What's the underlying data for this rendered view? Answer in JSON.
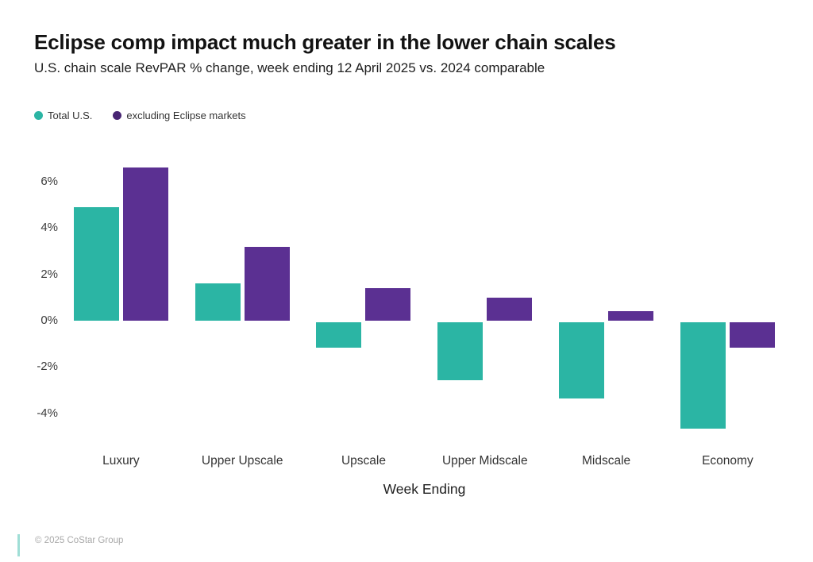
{
  "title": "Eclipse comp impact much greater in the lower chain scales",
  "subtitle": "U.S. chain scale RevPAR % change, week ending 12 April 2025 vs. 2024 comparable",
  "footer": "© 2025 CoStar Group",
  "colors": {
    "teal": "#2BB5A4",
    "purple": "#5B3092",
    "legend_purple": "#482573"
  },
  "legend": [
    {
      "label": "Total U.S.",
      "color_key": "teal"
    },
    {
      "label": "excluding Eclipse markets",
      "color_key": "legend_purple"
    }
  ],
  "chart_data": {
    "type": "bar",
    "title": "Eclipse comp impact much greater in the lower chain scales",
    "subtitle": "U.S. chain scale RevPAR % change, week ending 12 April 2025 vs. 2024 comparable",
    "categories": [
      "Luxury",
      "Upper Upscale",
      "Upscale",
      "Upper Midscale",
      "Midscale",
      "Economy"
    ],
    "series": [
      {
        "name": "Total U.S.",
        "color_key": "teal",
        "values": [
          4.9,
          1.6,
          -1.1,
          -2.5,
          -3.3,
          -4.6
        ]
      },
      {
        "name": "excluding Eclipse markets",
        "color_key": "purple",
        "values": [
          6.6,
          3.2,
          1.4,
          1.0,
          0.4,
          -1.1
        ]
      }
    ],
    "xlabel": "Week Ending",
    "ylabel": "",
    "y_ticks": [
      "6%",
      "4%",
      "2%",
      "0%",
      "-2%",
      "-4%"
    ],
    "ylim": [
      -5,
      7
    ],
    "grid": false,
    "legend_position": "top-left"
  }
}
